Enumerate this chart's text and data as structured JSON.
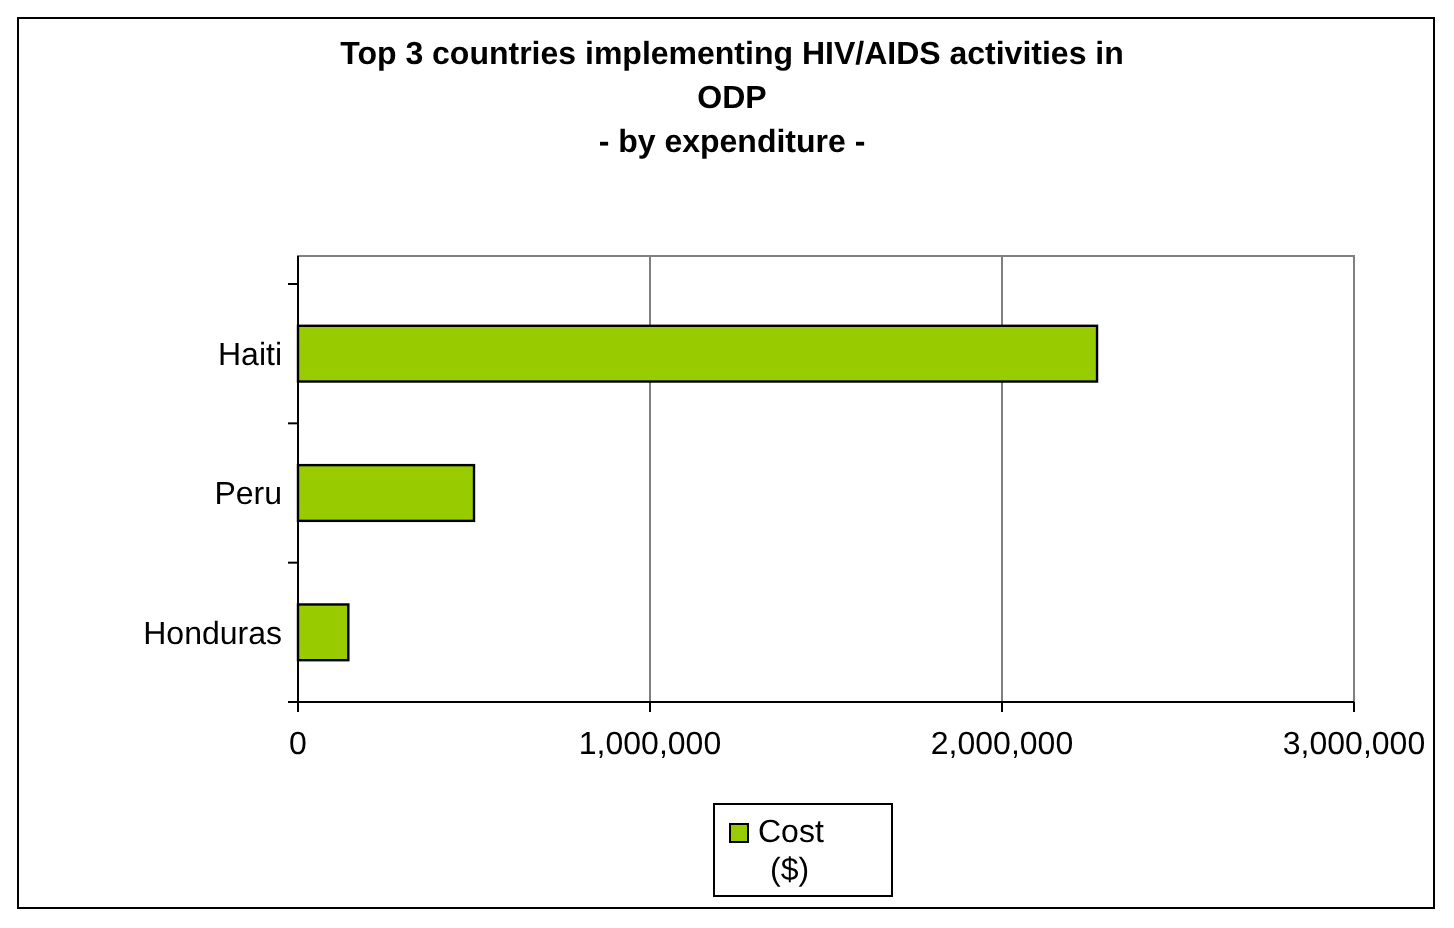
{
  "chart_data": {
    "type": "bar",
    "orientation": "horizontal",
    "title": "Top 3 countries implementing HIV/AIDS activities in ODP",
    "subtitle": "- by expenditure -",
    "categories": [
      "Haiti",
      "Peru",
      "Honduras"
    ],
    "series": [
      {
        "name": "Cost ($)",
        "color": "#99cc00",
        "values": [
          2270000,
          500000,
          143000
        ]
      }
    ],
    "xlim": [
      0,
      3000000
    ],
    "xticks": [
      {
        "value": 0,
        "label": "0"
      },
      {
        "value": 1000000,
        "label": "1,000,000"
      },
      {
        "value": 2000000,
        "label": "2,000,000"
      },
      {
        "value": 3000000,
        "label": "3,000,000"
      }
    ],
    "grid": "x",
    "legend": "bottom"
  }
}
